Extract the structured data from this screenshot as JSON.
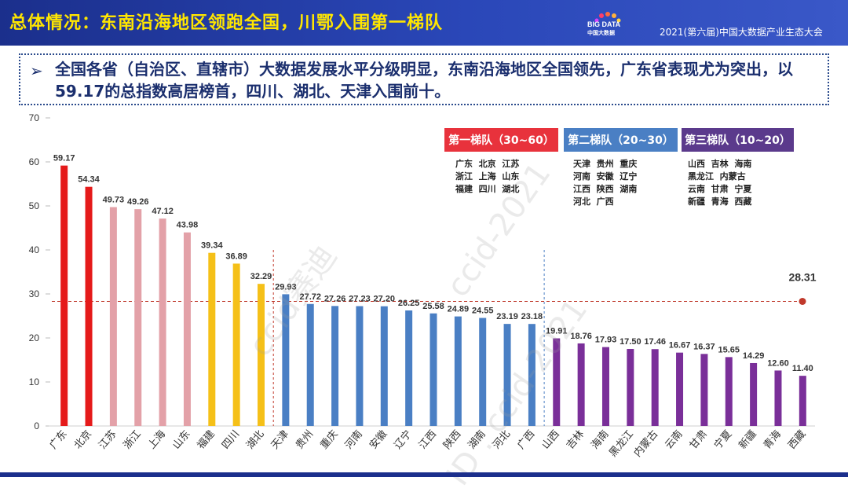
{
  "header": {
    "title": "总体情况：东南沿海地区领跑全国，川鄂入围第一梯队",
    "logo_text": "BIG DATA",
    "logo_sub": "中国大数据",
    "event": "2021(第六届)中国大数据产业生态大会"
  },
  "summary": {
    "bullet": "➢",
    "text": "全国各省（自治区、直辖市）大数据发展水平分级明显，东南沿海地区全国领先，广东省表现尤为突出，以59.17的总指数高居榜首，四川、湖北、天津入围前十。"
  },
  "watermarks": [
    "ccid赛迪",
    "ccid-2021",
    "ID : ccid-2021"
  ],
  "tiers": [
    {
      "label": "第一梯队（30~60）",
      "color": "#e8323c",
      "provinces": [
        "广东  北京  江苏",
        "浙江  上海  山东",
        "福建  四川  湖北"
      ]
    },
    {
      "label": "第二梯队（20~30）",
      "color": "#4a7fc4",
      "provinces": [
        "天津  贵州  重庆",
        "河南  安徽  辽宁",
        "江西  陕西  湖南",
        "河北  广西"
      ]
    },
    {
      "label": "第三梯队（10~20）",
      "color": "#5b3a8c",
      "provinces": [
        "山西  吉林  海南",
        "黑龙江  内蒙古",
        "云南  甘肃  宁夏",
        "新疆  青海  西藏"
      ]
    }
  ],
  "chart_data": {
    "type": "bar",
    "title": "",
    "xlabel": "",
    "ylabel": "",
    "ylim": [
      0,
      70
    ],
    "yticks": [
      0,
      10,
      20,
      30,
      40,
      50,
      60,
      70
    ],
    "categories": [
      "广东",
      "北京",
      "江苏",
      "浙江",
      "上海",
      "山东",
      "福建",
      "四川",
      "湖北",
      "天津",
      "贵州",
      "重庆",
      "河南",
      "安徽",
      "辽宁",
      "江西",
      "陕西",
      "湖南",
      "河北",
      "广西",
      "山西",
      "吉林",
      "海南",
      "黑龙江",
      "内蒙古",
      "云南",
      "甘肃",
      "宁夏",
      "新疆",
      "青海",
      "西藏"
    ],
    "values": [
      59.17,
      54.34,
      49.73,
      49.26,
      47.12,
      43.98,
      39.34,
      36.89,
      32.29,
      29.93,
      27.72,
      27.26,
      27.23,
      27.2,
      26.25,
      25.58,
      24.89,
      24.55,
      23.19,
      23.18,
      19.91,
      18.76,
      17.93,
      17.5,
      17.46,
      16.67,
      16.37,
      15.65,
      14.29,
      12.6,
      11.4
    ],
    "value_labels": [
      "59.17",
      "54.34",
      "49.73",
      "49.26",
      "47.12",
      "43.98",
      "39.34",
      "36.89",
      "32.29",
      "29.93",
      "27.72",
      "27.26",
      "27.23",
      "27.20",
      "26.25",
      "25.58",
      "24.89",
      "24.55",
      "23.19",
      "23.18",
      "19.91",
      "18.76",
      "17.93",
      "17.50",
      "17.46",
      "16.67",
      "16.37",
      "15.65",
      "14.29",
      "12.60",
      "11.40"
    ],
    "colors": [
      "#e51a1a",
      "#e51a1a",
      "#e3a1a8",
      "#e3a1a8",
      "#e3a1a8",
      "#e3a1a8",
      "#f5c018",
      "#f5c018",
      "#f5c018",
      "#4a7fc4",
      "#4a7fc4",
      "#4a7fc4",
      "#4a7fc4",
      "#4a7fc4",
      "#4a7fc4",
      "#4a7fc4",
      "#4a7fc4",
      "#4a7fc4",
      "#4a7fc4",
      "#4a7fc4",
      "#7a2f99",
      "#7a2f99",
      "#7a2f99",
      "#7a2f99",
      "#7a2f99",
      "#7a2f99",
      "#7a2f99",
      "#7a2f99",
      "#7a2f99",
      "#7a2f99",
      "#7a2f99"
    ],
    "average_value": 28.31,
    "average_label": "28.31",
    "average_color": "#c0392b",
    "tier_divider_after": [
      8,
      19
    ]
  }
}
